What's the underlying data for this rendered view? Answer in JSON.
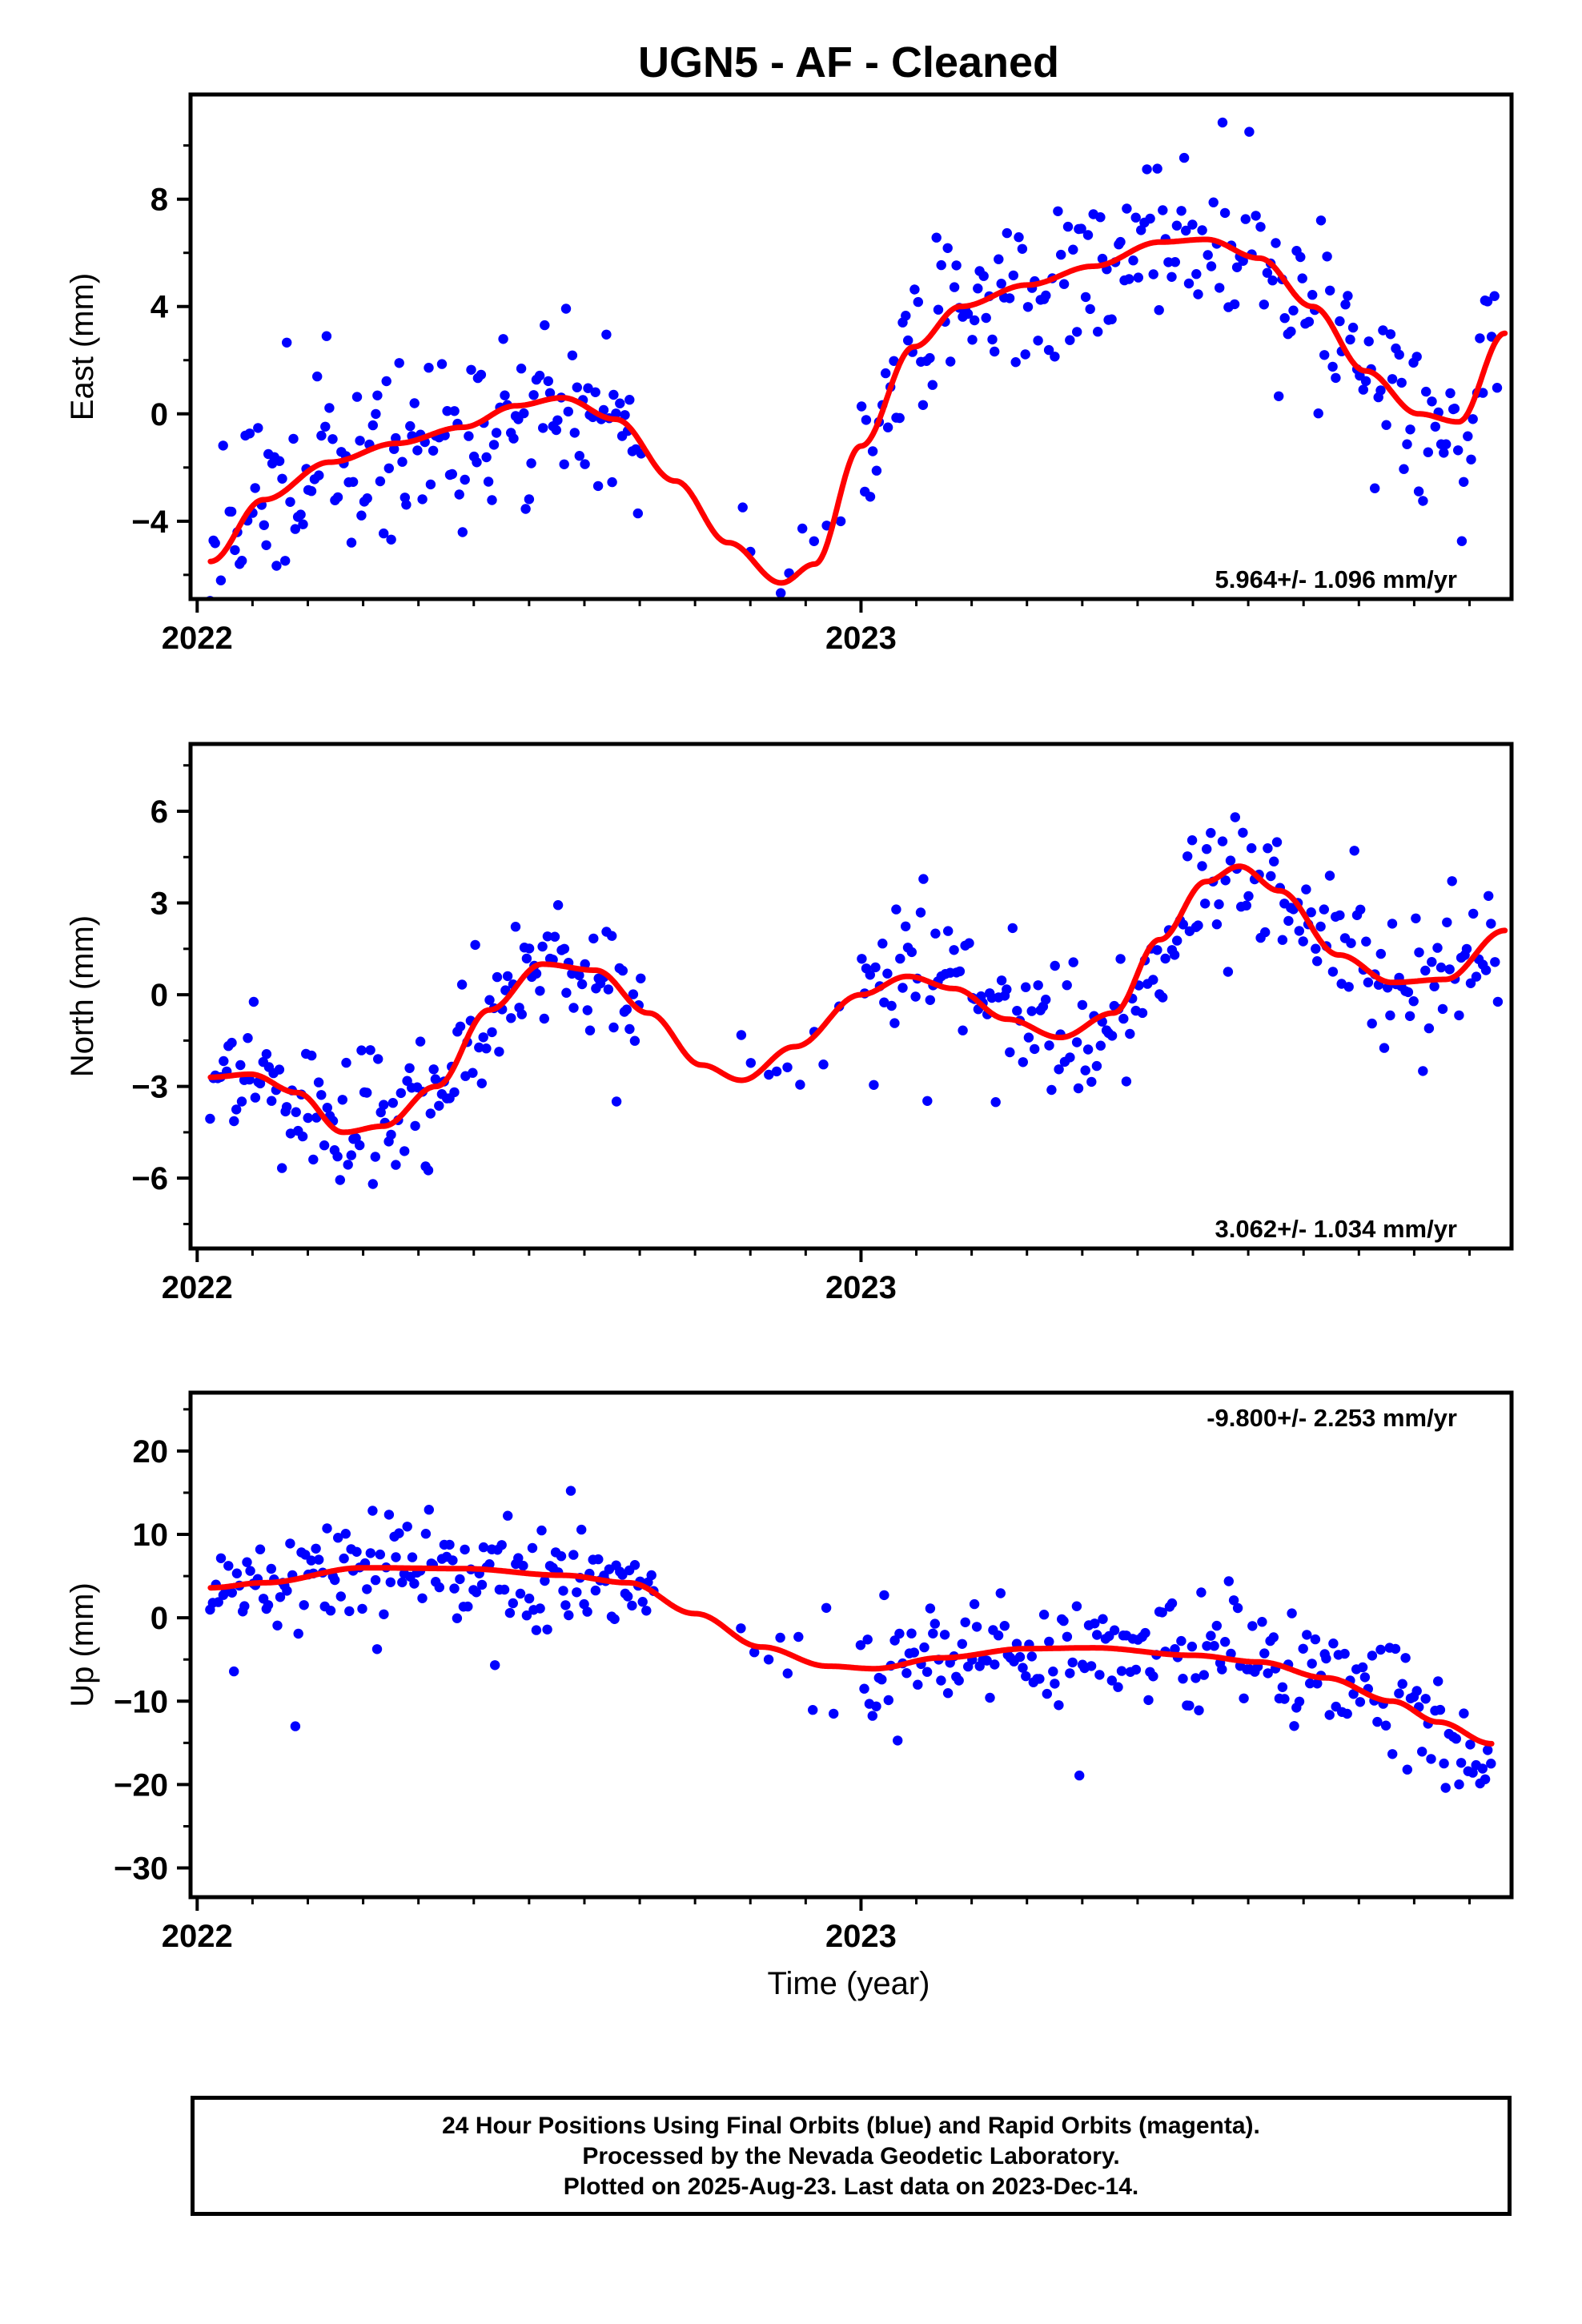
{
  "title": "UGN5  - AF - Cleaned",
  "xlabel": "Time (year)",
  "footer": [
    "24 Hour Positions Using Final Orbits (blue) and Rapid Orbits (magenta).",
    "Processed by the Nevada Geodetic Laboratory.",
    "Plotted on 2025-Aug-23. Last data on 2023-Dec-14."
  ],
  "colors": {
    "points": "#0000ff",
    "fit": "#ff0000",
    "frame": "#000000"
  },
  "chart_data": [
    {
      "type": "scatter",
      "panel": "east",
      "ylabel": "East (mm)",
      "rate_label": "5.964+/- 1.096 mm/yr",
      "rate_position": "bottom-right",
      "xlim": [
        2021.99,
        2023.98
      ],
      "ylim": [
        -6.9,
        11.9
      ],
      "xticks": [
        {
          "value": 2022,
          "label": "2022"
        },
        {
          "value": 2023,
          "label": "2023"
        }
      ],
      "yticks": [
        {
          "value": -4,
          "label": "−4"
        },
        {
          "value": 0,
          "label": "0"
        },
        {
          "value": 4,
          "label": "4"
        },
        {
          "value": 8,
          "label": "8"
        }
      ],
      "yminor_step": 2,
      "grid": false,
      "noise": 2.2,
      "seed": 11,
      "fit_knots": [
        [
          2022.02,
          -5.5
        ],
        [
          2022.1,
          -3.2
        ],
        [
          2022.2,
          -1.8
        ],
        [
          2022.3,
          -1.1
        ],
        [
          2022.4,
          -0.5
        ],
        [
          2022.48,
          0.3
        ],
        [
          2022.55,
          0.6
        ],
        [
          2022.63,
          -0.2
        ],
        [
          2022.72,
          -2.5
        ],
        [
          2022.8,
          -4.8
        ],
        [
          2022.88,
          -6.3
        ],
        [
          2022.93,
          -5.6
        ],
        [
          2023.0,
          -1.2
        ],
        [
          2023.08,
          2.5
        ],
        [
          2023.15,
          4.0
        ],
        [
          2023.25,
          4.8
        ],
        [
          2023.35,
          5.5
        ],
        [
          2023.45,
          6.4
        ],
        [
          2023.52,
          6.5
        ],
        [
          2023.6,
          5.8
        ],
        [
          2023.68,
          4.0
        ],
        [
          2023.76,
          1.6
        ],
        [
          2023.84,
          0.0
        ],
        [
          2023.9,
          -0.3
        ],
        [
          2023.97,
          3.0
        ]
      ],
      "data_segments": [
        {
          "start": 2022.02,
          "end": 2022.67,
          "step": 0.004
        },
        {
          "start": 2022.82,
          "end": 2022.98,
          "step": 0.018
        },
        {
          "start": 2023.0,
          "end": 2023.96,
          "step": 0.0045
        }
      ],
      "fit_range": [
        2022.02,
        2023.97
      ]
    },
    {
      "type": "scatter",
      "panel": "north",
      "ylabel": "North (mm)",
      "rate_label": "3.062+/- 1.034 mm/yr",
      "rate_position": "bottom-right",
      "xlim": [
        2021.99,
        2023.98
      ],
      "ylim": [
        -8.3,
        8.2
      ],
      "xticks": [
        {
          "value": 2022,
          "label": "2022"
        },
        {
          "value": 2023,
          "label": "2023"
        }
      ],
      "yticks": [
        {
          "value": -6,
          "label": "−6"
        },
        {
          "value": -3,
          "label": "−3"
        },
        {
          "value": 0,
          "label": "0"
        },
        {
          "value": 3,
          "label": "3"
        },
        {
          "value": 6,
          "label": "6"
        }
      ],
      "yminor_step": 1.5,
      "grid": false,
      "noise": 1.5,
      "seed": 23,
      "fit_knots": [
        [
          2022.02,
          -2.7
        ],
        [
          2022.08,
          -2.6
        ],
        [
          2022.15,
          -3.2
        ],
        [
          2022.22,
          -4.5
        ],
        [
          2022.28,
          -4.3
        ],
        [
          2022.36,
          -3.0
        ],
        [
          2022.44,
          -0.5
        ],
        [
          2022.52,
          1.0
        ],
        [
          2022.6,
          0.8
        ],
        [
          2022.68,
          -0.6
        ],
        [
          2022.76,
          -2.3
        ],
        [
          2022.82,
          -2.8
        ],
        [
          2022.9,
          -1.7
        ],
        [
          2023.0,
          0.0
        ],
        [
          2023.07,
          0.6
        ],
        [
          2023.14,
          0.2
        ],
        [
          2023.22,
          -0.8
        ],
        [
          2023.3,
          -1.4
        ],
        [
          2023.38,
          -0.6
        ],
        [
          2023.45,
          1.8
        ],
        [
          2023.52,
          3.7
        ],
        [
          2023.57,
          4.2
        ],
        [
          2023.63,
          3.4
        ],
        [
          2023.72,
          1.3
        ],
        [
          2023.8,
          0.4
        ],
        [
          2023.88,
          0.5
        ],
        [
          2023.97,
          2.1
        ]
      ],
      "data_segments": [
        {
          "start": 2022.02,
          "end": 2022.67,
          "step": 0.004
        },
        {
          "start": 2022.82,
          "end": 2022.98,
          "step": 0.018
        },
        {
          "start": 2023.0,
          "end": 2023.96,
          "step": 0.0045
        }
      ],
      "fit_range": [
        2022.02,
        2023.97
      ]
    },
    {
      "type": "scatter",
      "panel": "up",
      "ylabel": "Up (mm)",
      "rate_label": "-9.800+/- 2.253 mm/yr",
      "rate_position": "top-right",
      "xlim": [
        2021.99,
        2023.98
      ],
      "ylim": [
        -33.5,
        27
      ],
      "xticks": [
        {
          "value": 2022,
          "label": "2022"
        },
        {
          "value": 2023,
          "label": "2023"
        }
      ],
      "yticks": [
        {
          "value": -30,
          "label": "−30"
        },
        {
          "value": -20,
          "label": "−20"
        },
        {
          "value": -10,
          "label": "−10"
        },
        {
          "value": 0,
          "label": "0"
        },
        {
          "value": 10,
          "label": "10"
        },
        {
          "value": 20,
          "label": "20"
        }
      ],
      "yminor_step": 5,
      "grid": false,
      "noise": 4.8,
      "seed": 37,
      "fit_knots": [
        [
          2022.02,
          3.6
        ],
        [
          2022.1,
          4.2
        ],
        [
          2022.25,
          6.0
        ],
        [
          2022.4,
          5.9
        ],
        [
          2022.55,
          5.1
        ],
        [
          2022.65,
          4.2
        ],
        [
          2022.75,
          0.5
        ],
        [
          2022.85,
          -3.5
        ],
        [
          2022.95,
          -5.8
        ],
        [
          2023.02,
          -6.1
        ],
        [
          2023.12,
          -4.8
        ],
        [
          2023.25,
          -3.7
        ],
        [
          2023.35,
          -3.6
        ],
        [
          2023.5,
          -4.5
        ],
        [
          2023.6,
          -5.3
        ],
        [
          2023.7,
          -7.2
        ],
        [
          2023.8,
          -10.0
        ],
        [
          2023.87,
          -12.5
        ],
        [
          2023.95,
          -15.1
        ]
      ],
      "data_segments": [
        {
          "start": 2022.02,
          "end": 2022.69,
          "step": 0.004
        },
        {
          "start": 2022.82,
          "end": 2022.98,
          "step": 0.018
        },
        {
          "start": 2023.0,
          "end": 2023.95,
          "step": 0.0045
        }
      ],
      "fit_range": [
        2022.02,
        2023.95
      ]
    }
  ]
}
